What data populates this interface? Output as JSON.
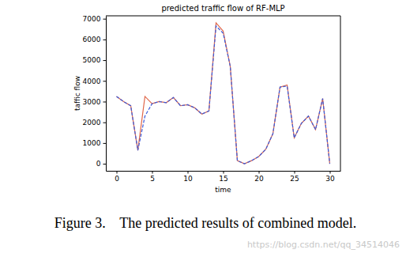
{
  "chart_data": {
    "type": "line",
    "title": "predicted traffic flow of RF-MLP",
    "x_label": "time",
    "y_label": "taffic flow",
    "annotations": [
      "Figure 3.    The predicted results of combined model.",
      "https://blog.csdn.net/qq_34514046"
    ],
    "x": [
      0,
      1,
      2,
      3,
      4,
      5,
      6,
      7,
      8,
      9,
      10,
      11,
      12,
      13,
      14,
      15,
      16,
      17,
      18,
      19,
      20,
      21,
      22,
      23,
      24,
      25,
      26,
      27,
      28,
      29,
      30
    ],
    "series": [
      {
        "color": "#e0674a",
        "line_style": "solid",
        "values": [
          3250,
          3000,
          2800,
          650,
          3250,
          2900,
          3000,
          2950,
          3200,
          2800,
          2850,
          2700,
          2400,
          2550,
          6800,
          6400,
          4700,
          150,
          0,
          150,
          350,
          700,
          1450,
          3700,
          3800,
          1250,
          1950,
          2300,
          1650,
          3150,
          0
        ]
      },
      {
        "color": "#3b5bdb",
        "line_style": "dashed",
        "values": [
          3250,
          3000,
          2800,
          650,
          2300,
          2900,
          3000,
          2950,
          3200,
          2800,
          2850,
          2700,
          2400,
          2550,
          6650,
          6300,
          4700,
          150,
          0,
          150,
          350,
          700,
          1450,
          3700,
          3750,
          1250,
          1950,
          2300,
          1650,
          3150,
          0
        ]
      }
    ],
    "xlim": [
      -1.5,
      31.5
    ],
    "ylim": [
      -340,
      7140
    ],
    "xticks": [
      0,
      5,
      10,
      15,
      20,
      25,
      30
    ],
    "yticks": [
      0,
      1000,
      2000,
      3000,
      4000,
      5000,
      6000,
      7000
    ],
    "grid": false
  }
}
